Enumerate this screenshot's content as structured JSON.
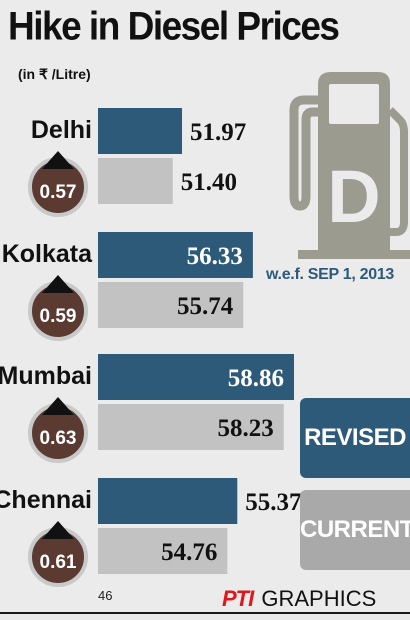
{
  "header": {
    "title": "Hike in Diesel Prices",
    "unit": "(in ₹ /Litre)"
  },
  "note": "w.e.f. SEP 1, 2013",
  "legend": {
    "revised": "REVISED",
    "current": "CURRENT"
  },
  "footer": {
    "page_number": "46",
    "credit_logo": "PTI",
    "credit_text": "GRAPHICS"
  },
  "colors": {
    "revised": "#2e5a7a",
    "current": "#c2c2c2",
    "badge": "#5b3a32",
    "pump": "#9b9b8f"
  },
  "icons": [
    "fuel-pump-icon",
    "up-arrow-icon"
  ],
  "chart_data": {
    "type": "bar",
    "orientation": "horizontal",
    "title": "Hike in Diesel Prices",
    "subtitle": "(in ₹ /Litre)",
    "categories": [
      "Delhi",
      "Kolkata",
      "Mumbai",
      "Chennai"
    ],
    "series": [
      {
        "name": "REVISED",
        "values": [
          51.97,
          56.33,
          58.86,
          55.37
        ]
      },
      {
        "name": "CURRENT",
        "values": [
          51.4,
          55.74,
          58.23,
          54.76
        ]
      }
    ],
    "hike": [
      "0.57",
      "0.59",
      "0.63",
      "0.61"
    ],
    "value_labels": {
      "revised": [
        "51.97",
        "56.33",
        "58.86",
        "55.37"
      ],
      "current": [
        "51.40",
        "55.74",
        "58.23",
        "54.76"
      ]
    },
    "legend_position": "right",
    "grid": false
  }
}
